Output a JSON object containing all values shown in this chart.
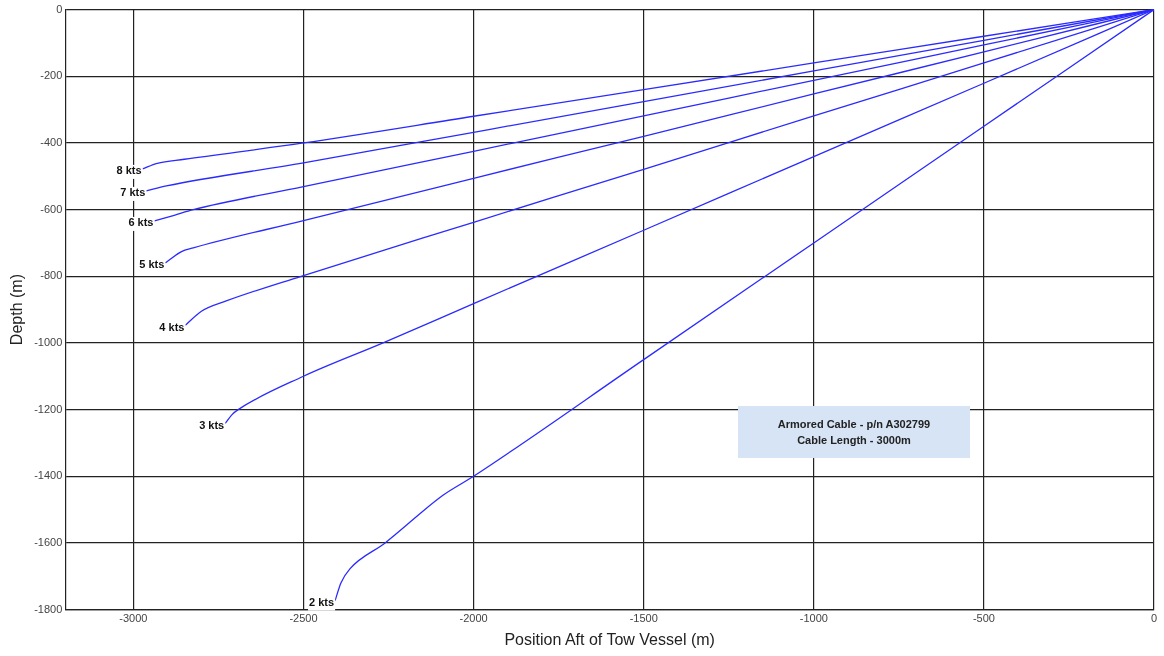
{
  "chart_data": {
    "type": "line",
    "xlabel": "Position Aft of Tow Vessel (m)",
    "ylabel": "Depth (m)",
    "xlim": [
      -3200,
      0
    ],
    "xticks": [
      -3000,
      -2500,
      -2000,
      -1500,
      -1000,
      -500,
      0
    ],
    "ylim": [
      -1800,
      0
    ],
    "yticks": [
      -1800,
      -1600,
      -1400,
      -1200,
      -1000,
      -800,
      -600,
      -400,
      -200,
      0
    ],
    "grid": true,
    "legend": false,
    "marker": "none",
    "line_style": "solid",
    "annotations": [
      "Armored Cable - p/n A302799",
      "Cable Length - 3000m"
    ],
    "series": [
      {
        "name": "8 kts",
        "color": "#2b2bff",
        "x": [
          -2973,
          -2930,
          -2850,
          -2500,
          -2000,
          -1500,
          -1000,
          -500,
          0
        ],
        "values": [
          -478,
          -461,
          -449,
          -400,
          -320,
          -240,
          -160,
          -80,
          0
        ]
      },
      {
        "name": "7 kts",
        "color": "#2b2bff",
        "x": [
          -2962,
          -2903,
          -2500,
          -2000,
          -1500,
          -1000,
          -500,
          0
        ],
        "values": [
          -544,
          -529,
          -460,
          -368,
          -276,
          -184,
          -92,
          0
        ]
      },
      {
        "name": "6 kts",
        "color": "#2b2bff",
        "x": [
          -2938,
          -2880,
          -2824,
          -2500,
          -2000,
          -1500,
          -1000,
          -500,
          0
        ],
        "values": [
          -634,
          -617,
          -600,
          -531,
          -425,
          -319,
          -212,
          -106,
          0
        ]
      },
      {
        "name": "5 kts",
        "color": "#2b2bff",
        "x": [
          -2906,
          -2860,
          -2824,
          -2500,
          -2000,
          -1500,
          -1000,
          -500,
          0
        ],
        "values": [
          -760,
          -727,
          -715,
          -633,
          -506,
          -380,
          -253,
          -127,
          0
        ]
      },
      {
        "name": "4 kts",
        "color": "#2b2bff",
        "x": [
          -2847,
          -2800,
          -2727,
          -2507,
          -2000,
          -1500,
          -1000,
          -500,
          0
        ],
        "values": [
          -947,
          -905,
          -874,
          -800,
          -638,
          -479,
          -319,
          -160,
          0
        ]
      },
      {
        "name": "3 kts",
        "color": "#2b2bff",
        "x": [
          -2730,
          -2710,
          -2692,
          -2500,
          -2266,
          -2000,
          -1500,
          -1000,
          -500,
          0
        ],
        "values": [
          -1241,
          -1215,
          -1200,
          -1100,
          -1000,
          -882,
          -662,
          -441,
          -221,
          0
        ]
      },
      {
        "name": "2 kts",
        "color": "#2b2bff",
        "x": [
          -2407,
          -2390,
          -2363,
          -2260,
          -2090,
          -2000,
          -1500,
          -1000,
          -500,
          0
        ],
        "values": [
          -1773,
          -1720,
          -1677,
          -1600,
          -1457,
          -1400,
          -1050,
          -700,
          -350,
          0
        ]
      }
    ]
  }
}
